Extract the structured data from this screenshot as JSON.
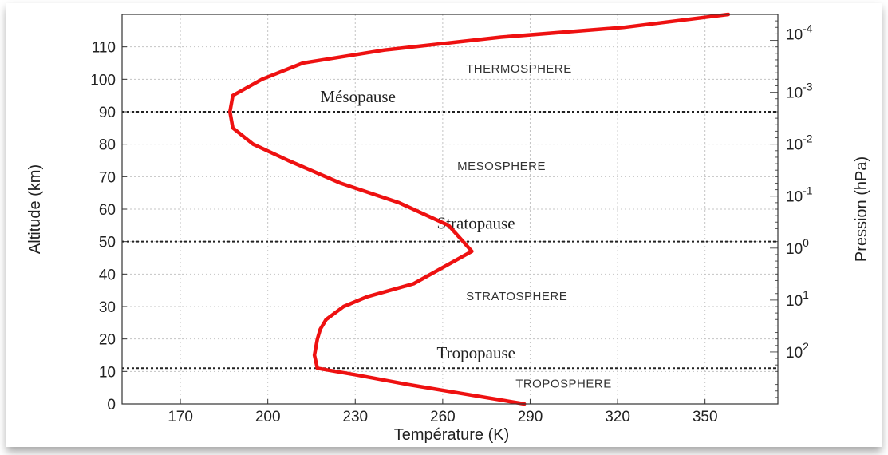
{
  "chart_data": {
    "type": "line",
    "xlabel": "Température (K)",
    "ylabel": "Altitude (km)",
    "y2label": "Pression (hPa)",
    "xlim": [
      150,
      375
    ],
    "ylim": [
      0,
      120
    ],
    "x_ticks": [
      170,
      200,
      230,
      260,
      290,
      320,
      350
    ],
    "y_ticks": [
      0,
      10,
      20,
      30,
      40,
      50,
      60,
      70,
      80,
      90,
      100,
      110
    ],
    "y2_ticks": [
      {
        "label": "10",
        "exp": "-4",
        "altitude": 114
      },
      {
        "label": "10",
        "exp": "-3",
        "altitude": 96
      },
      {
        "label": "10",
        "exp": "-2",
        "altitude": 80
      },
      {
        "label": "10",
        "exp": "-1",
        "altitude": 64
      },
      {
        "label": "10",
        "exp": "0",
        "altitude": 48
      },
      {
        "label": "10",
        "exp": "1",
        "altitude": 32
      },
      {
        "label": "10",
        "exp": "2",
        "altitude": 16
      }
    ],
    "grid": true,
    "series": [
      {
        "color": "#ee1111",
        "x": [
          288,
          268,
          248,
          230,
          217,
          216,
          217,
          218,
          220,
          226,
          234,
          250,
          270,
          262,
          245,
          225,
          207,
          195,
          188,
          187,
          188,
          198,
          212,
          240,
          280,
          322,
          358
        ],
        "y": [
          0,
          3,
          6,
          9,
          11,
          15,
          20,
          23,
          26,
          30,
          33,
          37,
          47,
          55,
          62,
          68,
          75,
          80,
          85,
          90,
          95,
          100,
          105,
          109,
          113,
          116,
          120
        ]
      }
    ],
    "reference_lines": [
      {
        "altitude": 90,
        "label": "Mésopause",
        "label_x": 218,
        "label_y": 93,
        "style": "serif"
      },
      {
        "altitude": 50,
        "label": "Stratopause",
        "label_x": 258,
        "label_y": 54,
        "style": "serif"
      },
      {
        "altitude": 11,
        "label": "Tropopause",
        "label_x": 258,
        "label_y": 14,
        "style": "serif"
      }
    ],
    "layer_labels": [
      {
        "text": "THERMOSPHERE",
        "x": 268,
        "y": 102
      },
      {
        "text": "MESOSPHERE",
        "x": 265,
        "y": 72
      },
      {
        "text": "STRATOSPHERE",
        "x": 268,
        "y": 32
      },
      {
        "text": "TROPOSPHERE",
        "x": 285,
        "y": 5
      }
    ]
  }
}
